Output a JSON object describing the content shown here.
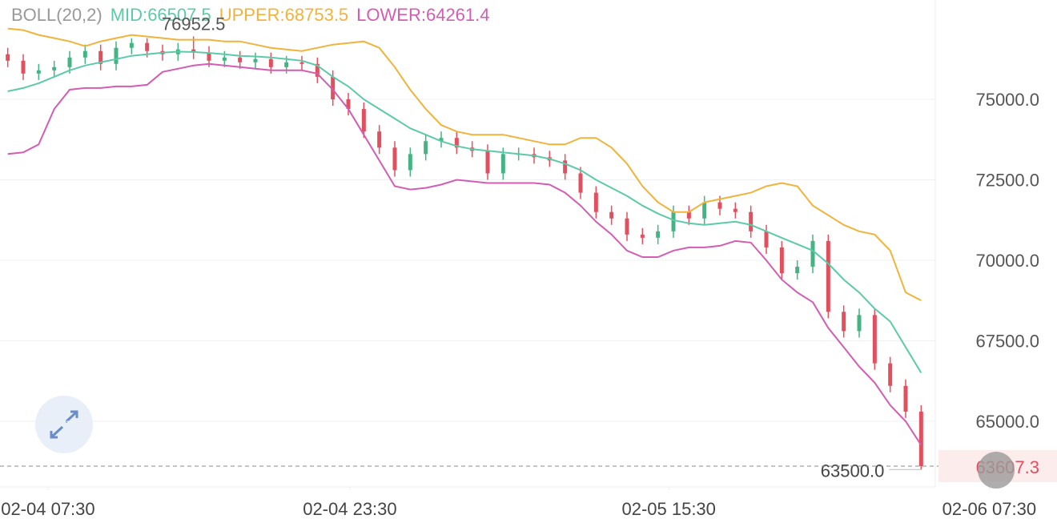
{
  "chart_data": {
    "type": "candlestick",
    "title": "BOLL(20,2)",
    "xlim": [
      0,
      60
    ],
    "xticks": [
      {
        "value": 3.1,
        "label": "02-04 07:30"
      },
      {
        "value": 22.6,
        "label": "02-04 23:30"
      },
      {
        "value": 43.2,
        "label": "02-05 15:30"
      },
      {
        "value": 63.9,
        "label": "02-06 07:30"
      }
    ],
    "ylim": [
      62960,
      78085
    ],
    "yticks": [
      {
        "value": 65000,
        "label": "65000.0"
      },
      {
        "value": 67500,
        "label": "67500.0"
      },
      {
        "value": 70000,
        "label": "70000.0"
      },
      {
        "value": 72500,
        "label": "72500.0"
      },
      {
        "value": 75000,
        "label": "75000.0"
      }
    ],
    "grid": true,
    "up_color": "#45b383",
    "down_color": "#e0505f",
    "candles": {
      "opens": [
        76400,
        76200,
        75800,
        75900,
        76000,
        76300,
        76500,
        76100,
        76600,
        76750,
        76500,
        76400,
        76550,
        76450,
        76200,
        76300,
        76150,
        76250,
        76000,
        76150,
        76100,
        75700,
        75000,
        74700,
        74000,
        73500,
        72800,
        73300,
        73700,
        73800,
        73500,
        73400,
        72700,
        73300,
        73300,
        73200,
        73100,
        72700,
        72100,
        71500,
        71300,
        70800,
        70700,
        70900,
        71500,
        71300,
        71800,
        71600,
        71500,
        70900,
        70400,
        69600,
        69800,
        70600,
        68400,
        67800,
        68300,
        66800,
        66100,
        65300
      ],
      "highs": [
        76600,
        76400,
        76100,
        76200,
        76500,
        76700,
        76700,
        76800,
        76900,
        76900,
        76700,
        76750,
        76952.5,
        76650,
        76500,
        76500,
        76450,
        76450,
        76350,
        76350,
        76300,
        75900,
        75200,
        74900,
        74200,
        73700,
        73500,
        73900,
        74000,
        74000,
        73700,
        73600,
        73500,
        73500,
        73500,
        73400,
        73300,
        72900,
        72300,
        71700,
        71500,
        71000,
        71100,
        71700,
        71700,
        72000,
        72000,
        71800,
        71700,
        71100,
        70600,
        70000,
        70800,
        70800,
        68600,
        68500,
        68500,
        67000,
        66300,
        65500
      ],
      "lows": [
        76000,
        75600,
        75600,
        75700,
        75800,
        76100,
        75900,
        75900,
        76400,
        76300,
        76200,
        76200,
        76250,
        76000,
        76000,
        75950,
        75950,
        75800,
        75800,
        75900,
        75500,
        74800,
        74500,
        73800,
        73300,
        72600,
        72600,
        73100,
        73500,
        73300,
        73200,
        72500,
        72500,
        73100,
        73000,
        72900,
        72500,
        71900,
        71300,
        71100,
        70600,
        70500,
        70500,
        70700,
        71100,
        71100,
        71400,
        71300,
        70700,
        70200,
        69400,
        69400,
        69600,
        68200,
        67600,
        67600,
        66600,
        65900,
        65100,
        63500
      ],
      "closes": [
        76200,
        75800,
        75900,
        76000,
        76300,
        76500,
        76100,
        76600,
        76750,
        76500,
        76400,
        76550,
        76450,
        76200,
        76300,
        76150,
        76250,
        76000,
        76150,
        76100,
        75700,
        75000,
        74700,
        74000,
        73500,
        72800,
        73300,
        73700,
        73800,
        73500,
        73400,
        72700,
        73300,
        73300,
        73200,
        73100,
        72700,
        72100,
        71500,
        71300,
        70800,
        70700,
        70900,
        71500,
        71300,
        71800,
        71600,
        71500,
        70900,
        70400,
        69600,
        69800,
        70600,
        68400,
        67800,
        68300,
        66800,
        66100,
        65300,
        63607.3
      ]
    },
    "low_value_label": "63500.0",
    "series": [
      {
        "name": "MID:",
        "color": "#5ccaa8",
        "values": [
          75250,
          75350,
          75500,
          75700,
          75900,
          76050,
          76150,
          76250,
          76350,
          76400,
          76450,
          76480,
          76470,
          76440,
          76400,
          76350,
          76330,
          76300,
          76250,
          76200,
          76050,
          75700,
          75400,
          75000,
          74700,
          74400,
          74100,
          73900,
          73700,
          73550,
          73450,
          73400,
          73350,
          73300,
          73250,
          73150,
          73000,
          72800,
          72500,
          72250,
          72000,
          71700,
          71450,
          71250,
          71150,
          71100,
          71150,
          71200,
          71100,
          70900,
          70700,
          70500,
          70300,
          69900,
          69400,
          69000,
          68500,
          68100,
          67300,
          66507.5
        ]
      },
      {
        "name": "UPPER:",
        "color": "#f0b33c",
        "values": [
          77200,
          77150,
          77000,
          76900,
          76800,
          76650,
          76800,
          76900,
          77000,
          76950,
          76900,
          76850,
          76850,
          76850,
          76800,
          76800,
          76700,
          76600,
          76550,
          76500,
          76600,
          76700,
          76750,
          76800,
          76600,
          76000,
          75300,
          74700,
          74200,
          74000,
          73900,
          73900,
          73900,
          73800,
          73700,
          73600,
          73600,
          73800,
          73800,
          73500,
          73000,
          72300,
          71800,
          71500,
          71500,
          71800,
          71900,
          72000,
          72100,
          72300,
          72400,
          72300,
          71700,
          71400,
          71100,
          70900,
          70800,
          70300,
          69000,
          68753.5
        ]
      },
      {
        "name": "LOWER:",
        "color": "#d35db2",
        "values": [
          73300,
          73350,
          73600,
          74700,
          75300,
          75350,
          75350,
          75400,
          75400,
          75450,
          75850,
          75950,
          76050,
          76100,
          76050,
          76000,
          75950,
          75900,
          75900,
          75900,
          75800,
          75300,
          74700,
          73900,
          73100,
          72300,
          72200,
          72250,
          72350,
          72500,
          72450,
          72400,
          72400,
          72400,
          72400,
          72350,
          72100,
          71700,
          71200,
          70800,
          70300,
          70100,
          70100,
          70300,
          70400,
          70400,
          70450,
          70600,
          70550,
          70000,
          69400,
          69000,
          68700,
          67900,
          67300,
          66700,
          66200,
          65500,
          65000,
          64261.4
        ]
      }
    ]
  }
}
